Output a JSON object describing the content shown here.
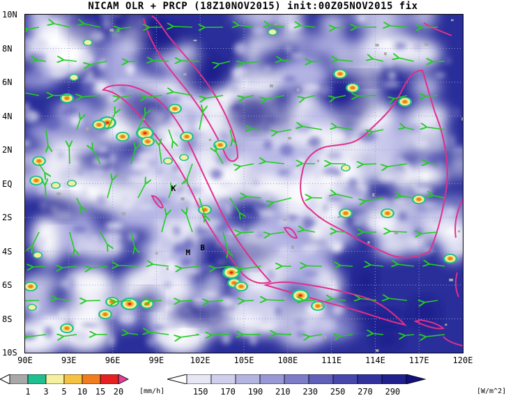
{
  "title": "NICAM OLR + PRCP (18Z10NOV2015) init:00Z05NOV2015 fix",
  "lat_labels": [
    "10N",
    "8N",
    "6N",
    "4N",
    "2N",
    "EQ",
    "2S",
    "4S",
    "6S",
    "8S",
    "10S"
  ],
  "lon_labels": [
    "90E",
    "93E",
    "96E",
    "99E",
    "102E",
    "105E",
    "108E",
    "111E",
    "114E",
    "117E",
    "120E"
  ],
  "stations": [
    {
      "label": "K",
      "lon": 100.2,
      "lat": -0.3
    },
    {
      "label": "M",
      "lon": 101.2,
      "lat": -4.1
    },
    {
      "label": "B",
      "lon": 102.2,
      "lat": -3.8
    }
  ],
  "precip_colorbar": {
    "ticks": [
      "1",
      "3",
      "5",
      "10",
      "15",
      "20"
    ],
    "unit": "[mm/h]",
    "colors": [
      "#a8a8a8",
      "#1fbf8f",
      "#f5f0a0",
      "#f5c242",
      "#f07d1e",
      "#e62020",
      "#e0409a"
    ]
  },
  "olr_colorbar": {
    "ticks": [
      "150",
      "170",
      "190",
      "210",
      "230",
      "250",
      "270",
      "290"
    ],
    "unit": "[W/m^2]",
    "colors": [
      "#ffffff",
      "#e6e6f5",
      "#cfcfeb",
      "#b4b4e0",
      "#9898d4",
      "#7c7cc8",
      "#6060bb",
      "#4747ad",
      "#32329f",
      "#20208f",
      "#10107e"
    ]
  },
  "colors": {
    "ocean_olr": "#2a2e9a",
    "cloud": "#ffffff",
    "coastline": "#e0308c",
    "wind_vector": "#22cc22",
    "grid": "#9a9ad8"
  }
}
